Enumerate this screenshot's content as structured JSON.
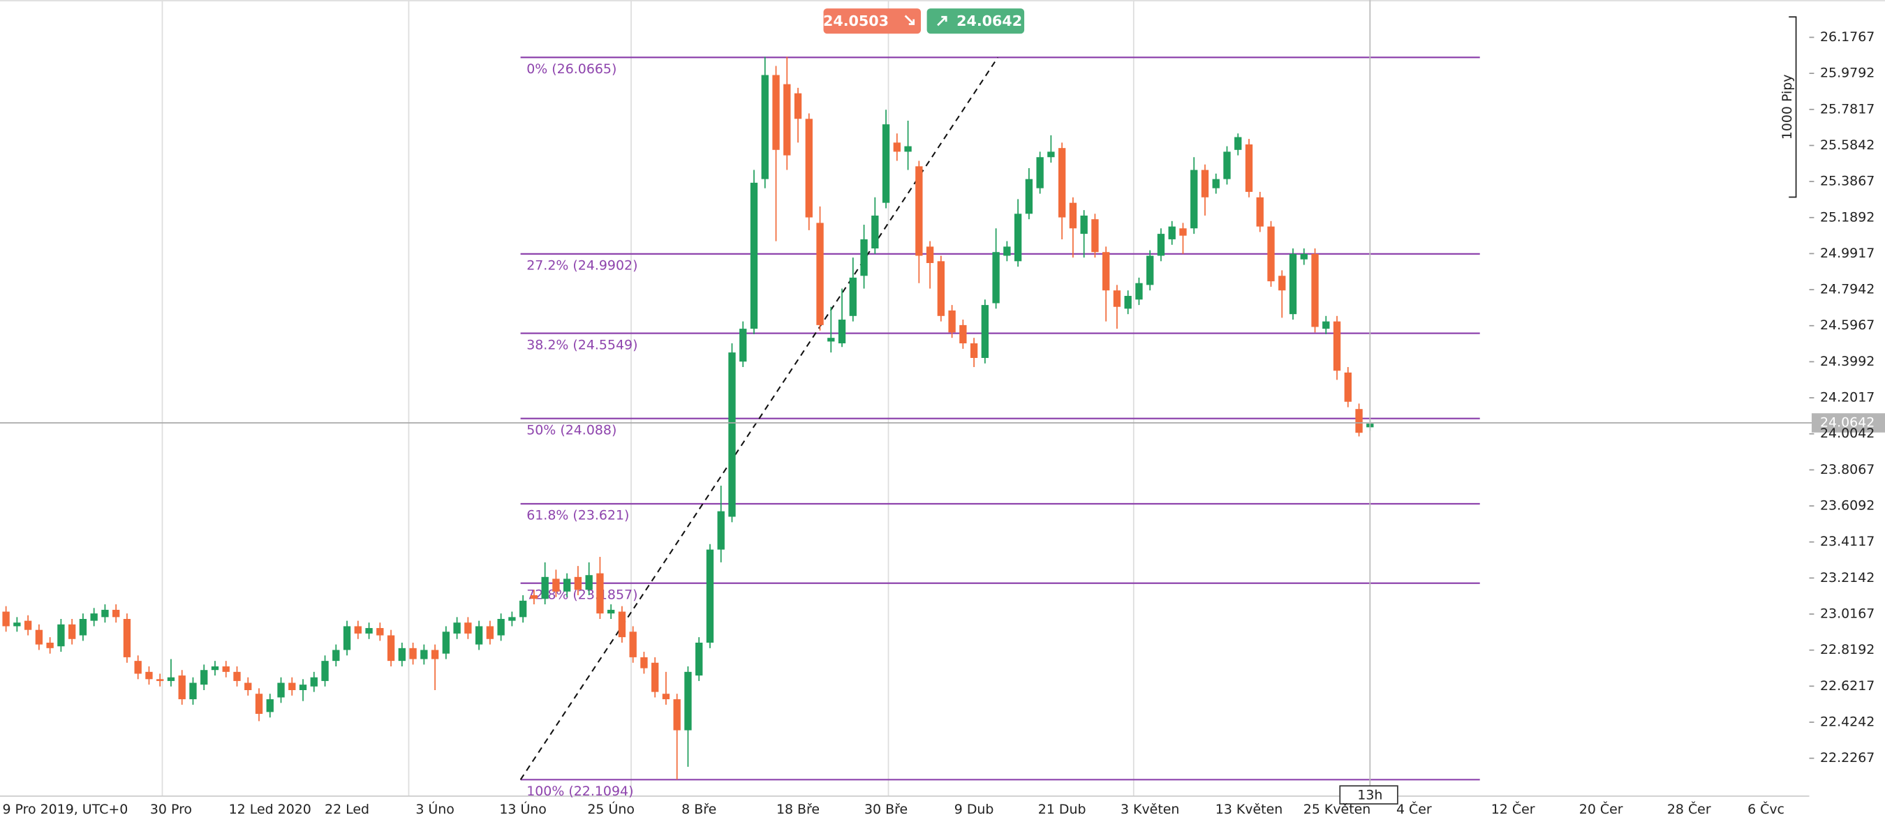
{
  "chart_data": {
    "type": "candlestick",
    "bid": 24.0503,
    "ask": 24.0642,
    "crosshair_time": "13h",
    "range_marker": "1000 Pipy",
    "up_color": "#1f9e5c",
    "down_color": "#f26b3a",
    "ylim": [
      22.0226,
      26.3808
    ],
    "yticks": [
      26.1767,
      25.9792,
      25.7817,
      25.5842,
      25.3867,
      25.1892,
      24.9917,
      24.7942,
      24.5967,
      24.3992,
      24.2017,
      24.0042,
      23.8067,
      23.6092,
      23.4117,
      23.2142,
      23.0167,
      22.8192,
      22.6217,
      22.4242,
      22.2267
    ],
    "categories": [
      "9 Pro 2019, UTC+0",
      null,
      null,
      null,
      null,
      null,
      null,
      null,
      null,
      null,
      null,
      null,
      null,
      null,
      null,
      "30 Pro",
      null,
      null,
      null,
      null,
      null,
      null,
      null,
      null,
      "12 Led 2020",
      null,
      null,
      null,
      null,
      null,
      null,
      "22 Led",
      null,
      null,
      null,
      null,
      null,
      null,
      null,
      "3 Úno",
      null,
      null,
      null,
      null,
      null,
      null,
      null,
      "13 Úno",
      null,
      null,
      null,
      null,
      null,
      null,
      null,
      "25 Úno",
      null,
      null,
      null,
      null,
      null,
      null,
      null,
      "8 Bře",
      null,
      null,
      null,
      null,
      null,
      null,
      null,
      null,
      "18 Bře",
      null,
      null,
      null,
      null,
      null,
      null,
      null,
      "30 Bře",
      null,
      null,
      null,
      null,
      null,
      null,
      null,
      "9 Dub",
      null,
      null,
      null,
      null,
      null,
      null,
      null,
      "21 Dub",
      null,
      null,
      null,
      null,
      null,
      null,
      null,
      "3 Květen",
      null,
      null,
      null,
      null,
      null,
      null,
      null,
      null,
      "13 Květen",
      null,
      null,
      null,
      null,
      null,
      null,
      null,
      "25 Květen",
      null,
      null,
      null,
      null,
      null,
      null,
      "4 Čer",
      null,
      null,
      null,
      null,
      null,
      null,
      null,
      null,
      "12 Čer",
      null,
      null,
      null,
      null,
      null,
      null,
      null,
      "20 Čer",
      null,
      null,
      null,
      null,
      null,
      null,
      null,
      "28 Čer",
      null,
      null,
      null,
      null,
      null,
      null,
      "6 Čvc",
      null,
      null,
      null,
      null,
      null,
      null,
      null,
      null,
      null,
      null
    ],
    "open": [
      23.03,
      22.95,
      22.98,
      22.93,
      22.86,
      22.84,
      22.96,
      22.9,
      22.98,
      23.0,
      23.04,
      22.99,
      22.76,
      22.7,
      22.66,
      22.65,
      22.68,
      22.55,
      22.63,
      22.71,
      22.73,
      22.7,
      22.64,
      22.58,
      22.48,
      22.56,
      22.64,
      22.6,
      22.62,
      22.65,
      22.76,
      22.82,
      22.95,
      22.91,
      22.94,
      22.9,
      22.76,
      22.83,
      22.77,
      22.82,
      22.8,
      22.91,
      22.97,
      22.85,
      22.95,
      22.9,
      22.98,
      23.0,
      23.12,
      23.1,
      23.21,
      23.14,
      23.22,
      23.15,
      23.24,
      23.02,
      23.03,
      22.92,
      22.78,
      22.75,
      22.58,
      22.55,
      22.38,
      22.68,
      22.86,
      23.37,
      23.55,
      24.4,
      24.58,
      25.4,
      25.97,
      25.92,
      25.87,
      25.73,
      25.16,
      24.51,
      24.5,
      24.65,
      24.87,
      25.02,
      25.27,
      25.6,
      25.55,
      25.47,
      25.03,
      24.95,
      24.68,
      24.6,
      24.5,
      24.42,
      24.72,
      24.98,
      24.95,
      25.21,
      25.35,
      25.52,
      25.57,
      25.27,
      25.1,
      25.18,
      25.0,
      24.79,
      24.69,
      24.74,
      24.82,
      24.98,
      25.07,
      25.13,
      25.13,
      25.45,
      25.35,
      25.4,
      25.56,
      25.59,
      25.3,
      25.14,
      24.87,
      24.66,
      24.96,
      24.99,
      24.58,
      24.62,
      24.34,
      24.14,
      24.04,
      null,
      null,
      null,
      null,
      null,
      null,
      null,
      null,
      null,
      null,
      null,
      null,
      null,
      null,
      null,
      null,
      null,
      null,
      null,
      null,
      null,
      null,
      null,
      null,
      null,
      null,
      null,
      null,
      null,
      null,
      null,
      null,
      null,
      null,
      null,
      null,
      null,
      null,
      null,
      null,
      null,
      null,
      null,
      null,
      null,
      null
    ],
    "high": [
      23.06,
      23.0,
      23.01,
      22.96,
      22.89,
      22.99,
      22.99,
      23.02,
      23.05,
      23.07,
      23.07,
      23.02,
      22.79,
      22.73,
      22.69,
      22.77,
      22.71,
      22.67,
      22.74,
      22.76,
      22.76,
      22.73,
      22.67,
      22.61,
      22.58,
      22.67,
      22.67,
      22.66,
      22.7,
      22.79,
      22.85,
      22.98,
      22.98,
      22.97,
      22.97,
      22.93,
      22.86,
      22.86,
      22.85,
      22.85,
      22.95,
      23.0,
      23.0,
      22.98,
      22.98,
      23.02,
      23.03,
      23.12,
      23.15,
      23.3,
      23.26,
      23.24,
      23.28,
      23.3,
      23.33,
      23.07,
      23.06,
      22.95,
      22.81,
      22.78,
      22.7,
      22.58,
      22.73,
      22.89,
      23.4,
      23.72,
      24.5,
      24.62,
      25.45,
      26.07,
      26.02,
      26.07,
      25.9,
      25.76,
      25.25,
      24.7,
      24.8,
      24.97,
      25.15,
      25.3,
      25.78,
      25.65,
      25.72,
      25.5,
      25.06,
      24.98,
      24.71,
      24.63,
      24.53,
      24.74,
      25.13,
      25.06,
      25.29,
      25.46,
      25.55,
      25.64,
      25.6,
      25.3,
      25.23,
      25.21,
      25.03,
      24.82,
      24.79,
      24.86,
      25.01,
      25.13,
      25.17,
      25.16,
      25.52,
      25.48,
      25.43,
      25.58,
      25.65,
      25.62,
      25.33,
      25.17,
      24.9,
      25.02,
      25.02,
      25.02,
      24.65,
      24.65,
      24.37,
      24.17,
      24.08,
      null,
      null,
      null,
      null,
      null,
      null,
      null,
      null,
      null,
      null,
      null,
      null,
      null,
      null,
      null,
      null,
      null,
      null,
      null,
      null,
      null,
      null,
      null,
      null,
      null,
      null,
      null,
      null,
      null,
      null,
      null,
      null,
      null,
      null,
      null,
      null,
      null,
      null,
      null,
      null,
      null,
      null,
      null,
      null,
      null,
      null
    ],
    "low": [
      22.92,
      22.92,
      22.9,
      22.82,
      22.8,
      22.81,
      22.85,
      22.87,
      22.95,
      22.97,
      22.97,
      22.75,
      22.66,
      22.63,
      22.62,
      22.62,
      22.52,
      22.52,
      22.6,
      22.68,
      22.67,
      22.62,
      22.57,
      22.43,
      22.45,
      22.53,
      22.57,
      22.54,
      22.59,
      22.62,
      22.73,
      22.79,
      22.88,
      22.88,
      22.87,
      22.73,
      22.73,
      22.74,
      22.74,
      22.6,
      22.77,
      22.88,
      22.88,
      22.82,
      22.85,
      22.87,
      22.95,
      22.97,
      23.07,
      23.07,
      23.11,
      23.11,
      23.12,
      23.12,
      22.99,
      22.99,
      22.86,
      22.75,
      22.69,
      22.56,
      22.52,
      22.11,
      22.18,
      22.65,
      22.83,
      23.3,
      23.52,
      24.37,
      24.55,
      25.35,
      25.06,
      25.45,
      25.6,
      25.12,
      24.57,
      24.45,
      24.48,
      24.62,
      24.8,
      24.99,
      25.24,
      25.5,
      25.45,
      24.83,
      24.8,
      24.62,
      24.53,
      24.47,
      24.37,
      24.39,
      24.69,
      24.95,
      24.92,
      25.18,
      25.32,
      25.49,
      25.07,
      24.97,
      24.97,
      24.97,
      24.62,
      24.58,
      24.66,
      24.71,
      24.79,
      24.95,
      25.04,
      24.99,
      25.1,
      25.2,
      25.32,
      25.37,
      25.53,
      25.3,
      25.11,
      24.81,
      24.64,
      24.63,
      24.93,
      24.56,
      24.55,
      24.3,
      24.15,
      23.99,
      24.02,
      null,
      null,
      null,
      null,
      null,
      null,
      null,
      null,
      null,
      null,
      null,
      null,
      null,
      null,
      null,
      null,
      null,
      null,
      null,
      null,
      null,
      null,
      null,
      null,
      null,
      null,
      null,
      null,
      null,
      null,
      null,
      null,
      null,
      null,
      null,
      null,
      null,
      null,
      null,
      null,
      null,
      null,
      null,
      null,
      null,
      null
    ],
    "close": [
      22.95,
      22.97,
      22.93,
      22.85,
      22.83,
      22.96,
      22.88,
      22.99,
      23.02,
      23.04,
      23.0,
      22.78,
      22.69,
      22.66,
      22.65,
      22.67,
      22.55,
      22.64,
      22.71,
      22.73,
      22.7,
      22.65,
      22.6,
      22.47,
      22.55,
      22.64,
      22.6,
      22.63,
      22.67,
      22.76,
      22.82,
      22.95,
      22.91,
      22.94,
      22.9,
      22.76,
      22.83,
      22.77,
      22.82,
      22.77,
      22.92,
      22.97,
      22.91,
      22.95,
      22.88,
      22.99,
      23.0,
      23.09,
      23.1,
      23.22,
      23.14,
      23.21,
      23.15,
      23.23,
      23.02,
      23.04,
      22.89,
      22.78,
      22.72,
      22.59,
      22.55,
      22.38,
      22.7,
      22.86,
      23.37,
      23.58,
      24.45,
      24.58,
      25.38,
      25.97,
      25.56,
      25.53,
      25.73,
      25.19,
      24.6,
      24.53,
      24.63,
      24.86,
      25.07,
      25.2,
      25.7,
      25.55,
      25.58,
      24.98,
      24.94,
      24.65,
      24.56,
      24.5,
      24.42,
      24.71,
      25.0,
      25.03,
      25.21,
      25.4,
      25.52,
      25.55,
      25.19,
      25.13,
      25.2,
      25.0,
      24.79,
      24.7,
      24.76,
      24.83,
      24.98,
      25.1,
      25.14,
      25.09,
      25.45,
      25.3,
      25.4,
      25.55,
      25.63,
      25.33,
      25.14,
      24.84,
      24.79,
      24.99,
      24.99,
      24.59,
      24.62,
      24.35,
      24.18,
      24.01,
      24.06,
      null,
      null,
      null,
      null,
      null,
      null,
      null,
      null,
      null,
      null,
      null,
      null,
      null,
      null,
      null,
      null,
      null,
      null,
      null,
      null,
      null,
      null,
      null,
      null,
      null,
      null,
      null,
      null,
      null,
      null,
      null,
      null,
      null,
      null,
      null,
      null,
      null,
      null,
      null,
      null,
      null,
      null,
      null,
      null,
      null,
      null
    ],
    "fibonacci": {
      "color": "#8e44ad",
      "levels": [
        {
          "value": 26.0665,
          "label": "0% (26.0665)"
        },
        {
          "value": 24.9902,
          "label": "27.2% (24.9902)"
        },
        {
          "value": 24.5549,
          "label": "38.2% (24.5549)"
        },
        {
          "value": 24.088,
          "label": "50% (24.088)"
        },
        {
          "value": 23.621,
          "label": "61.8% (23.621)"
        },
        {
          "value": 23.1857,
          "label": "72.8% (23.1857)"
        },
        {
          "value": 22.1094,
          "label": "100% (22.1094)"
        }
      ]
    }
  }
}
